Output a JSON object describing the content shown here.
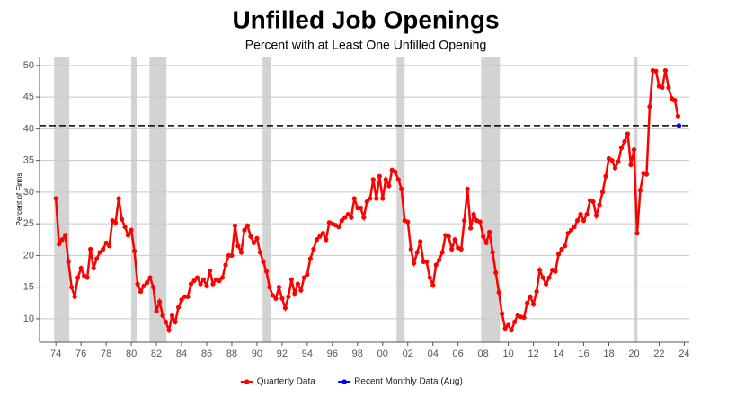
{
  "chart_data": {
    "type": "line",
    "title": "Unfilled Job Openings",
    "subtitle": "Percent with at Least One Unfilled Opening",
    "y_label": "Percent of Firms",
    "xlim": [
      1972.7,
      2024.4
    ],
    "ylim": [
      6.3,
      51.4
    ],
    "xticks": [
      {
        "value": 1974,
        "label": "74"
      },
      {
        "value": 1976,
        "label": "76"
      },
      {
        "value": 1978,
        "label": "78"
      },
      {
        "value": 1980,
        "label": "80"
      },
      {
        "value": 1982,
        "label": "82"
      },
      {
        "value": 1984,
        "label": "84"
      },
      {
        "value": 1986,
        "label": "86"
      },
      {
        "value": 1988,
        "label": "88"
      },
      {
        "value": 1990,
        "label": "90"
      },
      {
        "value": 1992,
        "label": "92"
      },
      {
        "value": 1994,
        "label": "94"
      },
      {
        "value": 1996,
        "label": "96"
      },
      {
        "value": 1998,
        "label": "98"
      },
      {
        "value": 2000,
        "label": "00"
      },
      {
        "value": 2002,
        "label": "02"
      },
      {
        "value": 2004,
        "label": "04"
      },
      {
        "value": 2006,
        "label": "06"
      },
      {
        "value": 2008,
        "label": "08"
      },
      {
        "value": 2010,
        "label": "10"
      },
      {
        "value": 2012,
        "label": "12"
      },
      {
        "value": 2014,
        "label": "14"
      },
      {
        "value": 2016,
        "label": "16"
      },
      {
        "value": 2018,
        "label": "18"
      },
      {
        "value": 2020,
        "label": "20"
      },
      {
        "value": 2022,
        "label": "22"
      },
      {
        "value": 2024,
        "label": "24"
      }
    ],
    "yticks": [
      10,
      15,
      20,
      25,
      30,
      35,
      40,
      45,
      50
    ],
    "grid": true,
    "legend": "bottom",
    "recessions": [
      [
        1973.86,
        1975.07
      ],
      [
        1980.0,
        1980.44
      ],
      [
        1981.44,
        1982.8
      ],
      [
        1990.45,
        1991.1
      ],
      [
        2001.11,
        2001.75
      ],
      [
        2007.83,
        2009.33
      ],
      [
        2020.0,
        2020.28
      ]
    ],
    "reference_line": 40.5,
    "series": [
      {
        "name": "Quarterly Data",
        "color": "#ff0000",
        "x": [
          1974,
          1974.25,
          1974.5,
          1974.75,
          1975,
          1975.25,
          1975.5,
          1975.75,
          1976,
          1976.25,
          1976.5,
          1976.75,
          1977,
          1977.25,
          1977.5,
          1977.75,
          1978,
          1978.25,
          1978.5,
          1978.75,
          1979,
          1979.25,
          1979.5,
          1979.75,
          1980,
          1980.25,
          1980.5,
          1980.75,
          1981,
          1981.25,
          1981.5,
          1981.75,
          1982,
          1982.25,
          1982.5,
          1982.75,
          1983,
          1983.25,
          1983.5,
          1983.75,
          1984,
          1984.25,
          1984.5,
          1984.75,
          1985,
          1985.25,
          1985.5,
          1985.75,
          1986,
          1986.25,
          1986.5,
          1986.75,
          1987,
          1987.25,
          1987.5,
          1987.75,
          1988,
          1988.25,
          1988.5,
          1988.75,
          1989,
          1989.25,
          1989.5,
          1989.75,
          1990,
          1990.25,
          1990.5,
          1990.75,
          1991,
          1991.25,
          1991.5,
          1991.75,
          1992,
          1992.25,
          1992.5,
          1992.75,
          1993,
          1993.25,
          1993.5,
          1993.75,
          1994,
          1994.25,
          1994.5,
          1994.75,
          1995,
          1995.25,
          1995.5,
          1995.75,
          1996,
          1996.25,
          1996.5,
          1996.75,
          1997,
          1997.25,
          1997.5,
          1997.75,
          1998,
          1998.25,
          1998.5,
          1998.75,
          1999,
          1999.25,
          1999.5,
          1999.75,
          2000,
          2000.25,
          2000.5,
          2000.75,
          2001,
          2001.25,
          2001.5,
          2001.75,
          2002,
          2002.25,
          2002.5,
          2002.75,
          2003,
          2003.25,
          2003.5,
          2003.75,
          2004,
          2004.25,
          2004.5,
          2004.75,
          2005,
          2005.25,
          2005.5,
          2005.75,
          2006,
          2006.25,
          2006.5,
          2006.75,
          2007,
          2007.25,
          2007.5,
          2007.75,
          2008,
          2008.25,
          2008.5,
          2008.75,
          2009,
          2009.25,
          2009.5,
          2009.75,
          2010,
          2010.25,
          2010.5,
          2010.75,
          2011,
          2011.25,
          2011.5,
          2011.75,
          2012,
          2012.25,
          2012.5,
          2012.75,
          2013,
          2013.25,
          2013.5,
          2013.75,
          2014,
          2014.25,
          2014.5,
          2014.75,
          2015,
          2015.25,
          2015.5,
          2015.75,
          2016,
          2016.25,
          2016.5,
          2016.75,
          2017,
          2017.25,
          2017.5,
          2017.75,
          2018,
          2018.25,
          2018.5,
          2018.75,
          2019,
          2019.25,
          2019.5,
          2019.75,
          2020,
          2020.25,
          2020.5,
          2020.75,
          2021,
          2021.25,
          2021.5,
          2021.75,
          2022,
          2022.25,
          2022.5,
          2022.75,
          2023,
          2023.25,
          2023.5
        ],
        "values": [
          29,
          21.8,
          22.5,
          23.2,
          19,
          15,
          13.5,
          16.5,
          18,
          16.8,
          16.5,
          21,
          18,
          19.5,
          20.5,
          21,
          22,
          21.5,
          25.5,
          25.2,
          29,
          25.7,
          24.5,
          23.2,
          24,
          20.7,
          15.5,
          14.3,
          15.2,
          15.7,
          16.5,
          15,
          11.2,
          12.7,
          10.5,
          9.5,
          8.2,
          10.5,
          9.5,
          11.8,
          13,
          13.5,
          13.5,
          15.5,
          16,
          16.5,
          15.5,
          16.2,
          15.2,
          17.6,
          15.5,
          16.2,
          16,
          16.5,
          18.5,
          20,
          20,
          24.7,
          21.5,
          20.5,
          24,
          24.7,
          23,
          22,
          22.7,
          20.5,
          19,
          17.5,
          15,
          13.7,
          13.2,
          15,
          13.2,
          11.7,
          13.5,
          16.2,
          14,
          15.5,
          14.5,
          16.5,
          17,
          19.5,
          21,
          22.5,
          23,
          23.5,
          22.5,
          25.2,
          25,
          24.8,
          24.5,
          25.5,
          26,
          26.5,
          26,
          29,
          27.5,
          27.5,
          26,
          28.5,
          29,
          32,
          29,
          32.5,
          29,
          32,
          31,
          33.5,
          33.2,
          32,
          30.5,
          25.5,
          25.3,
          21,
          18.8,
          20.5,
          22.2,
          19,
          19,
          16.5,
          15.3,
          18.5,
          19.3,
          20.5,
          23.2,
          23,
          21,
          22.5,
          21.2,
          21,
          25.5,
          30.5,
          24.3,
          26.5,
          25.5,
          25.3,
          23,
          22,
          23.7,
          20.5,
          17.3,
          14.2,
          10.8,
          8.5,
          9,
          8.2,
          9.5,
          10.5,
          10.3,
          10.2,
          12.5,
          13.5,
          12.3,
          14.3,
          17.7,
          16.5,
          15.5,
          16.5,
          17.7,
          17.5,
          20.2,
          21,
          21.5,
          23.5,
          24,
          24.5,
          25.5,
          26.5,
          25.5,
          26.5,
          28.7,
          28.5,
          26.3,
          28,
          30,
          32.5,
          35.3,
          35,
          33.8,
          34.8,
          37,
          38,
          39.2,
          34.3,
          36.7,
          23.5,
          30.3,
          33,
          32.8,
          43.5,
          49.2,
          49.1,
          46.7,
          46.5,
          49.2,
          46.5,
          44.8,
          44.5,
          42
        ]
      },
      {
        "name": "Recent Monthly Data (Aug)",
        "color": "#0000ff",
        "x": [
          2023.58
        ],
        "values": [
          40.5
        ]
      }
    ]
  }
}
